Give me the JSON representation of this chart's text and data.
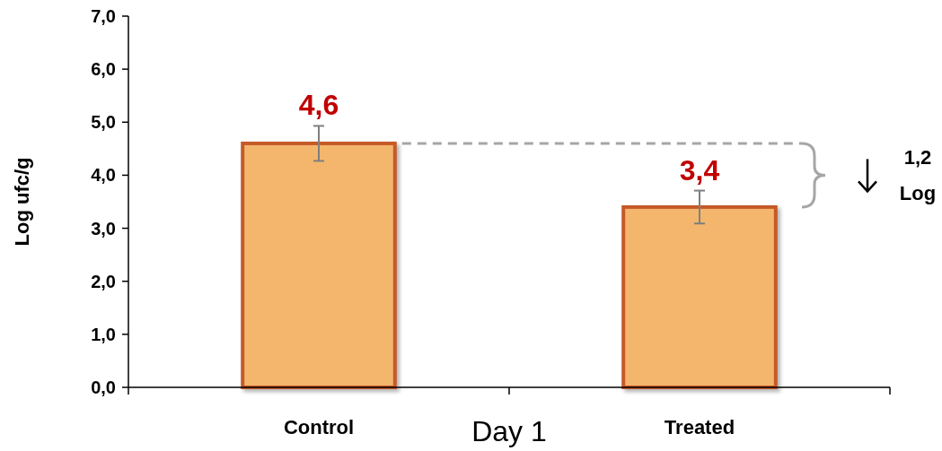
{
  "chart_data": {
    "type": "bar",
    "xlabel": "Day 1",
    "ylabel": "Log ufc/g",
    "categories": [
      "Control",
      "Treated"
    ],
    "values": [
      4.6,
      3.4
    ],
    "color": "#f4b66c",
    "errors": [
      0.33,
      0.31
    ],
    "value_labels": [
      "4,6",
      "3,4"
    ],
    "ylim": [
      0,
      7
    ],
    "yticks": [
      {
        "value": 0,
        "label": "0,0"
      },
      {
        "value": 1,
        "label": "1,0"
      },
      {
        "value": 2,
        "label": "2,0"
      },
      {
        "value": 3,
        "label": "3,0"
      },
      {
        "value": 4,
        "label": "4,0"
      },
      {
        "value": 5,
        "label": "5,0"
      },
      {
        "value": 6,
        "label": "6,0"
      },
      {
        "value": 7,
        "label": "7,0"
      }
    ],
    "ref_lines": [
      {
        "axis": "y",
        "value": 4.6,
        "color": "#a6a6a6",
        "line_style": "dashed"
      }
    ],
    "annotations": [
      "1,2 Log"
    ]
  }
}
